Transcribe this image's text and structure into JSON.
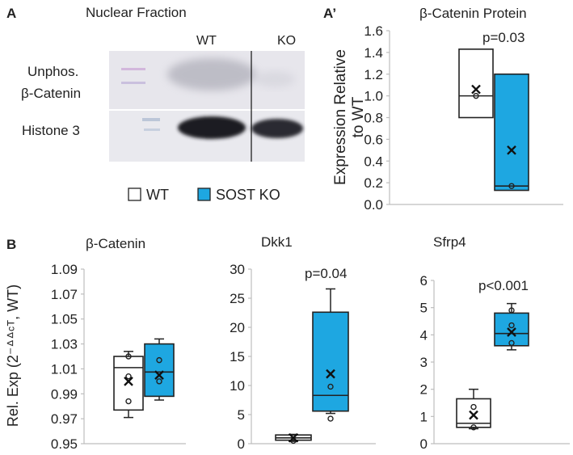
{
  "colors": {
    "wt": "#ffffff",
    "ko": "#1ea7e1",
    "axis": "#bdbdbd",
    "marker": "#111111"
  },
  "panel_labels": {
    "a": "A",
    "a_prime": "A’",
    "b": "B"
  },
  "blot": {
    "title": "Nuclear Fraction",
    "lane_wt": "WT",
    "lane_ko": "KO",
    "row1_line1": "Unphos.",
    "row1_line2": "β-Catenin",
    "row2": "Histone 3"
  },
  "legend": {
    "wt": "WT",
    "ko": "SOST KO"
  },
  "chart_data": [
    {
      "id": "protein",
      "type": "box",
      "title": "β-Catenin Protein",
      "ylabel_lines": [
        "Expression Relative",
        "to WT"
      ],
      "ylim": [
        0,
        1.6
      ],
      "yticks": [
        "0.0",
        "0.2",
        "0.4",
        "0.6",
        "0.8",
        "1.0",
        "1.2",
        "1.4",
        "1.6"
      ],
      "pvalue": "p=0.03",
      "groups": [
        {
          "name": "WT",
          "color": "#ffffff",
          "min": 0.8,
          "q1": 0.8,
          "median": 1.0,
          "q3": 1.43,
          "max": 1.43,
          "mean": 1.06,
          "points": [
            1.0
          ]
        },
        {
          "name": "SOST KO",
          "color": "#1ea7e1",
          "min": 0.13,
          "q1": 0.13,
          "median": 0.17,
          "q3": 1.2,
          "max": 1.2,
          "mean": 0.5,
          "points": [
            0.17
          ]
        }
      ]
    },
    {
      "id": "bcat",
      "type": "box",
      "title": "β-Catenin",
      "ylabel": "Rel. Exp (2⁻ᐞᐞᶜᵀ, WT)",
      "ylim": [
        0.95,
        1.09
      ],
      "yticks": [
        "0.95",
        "0.97",
        "0.99",
        "1.01",
        "1.03",
        "1.05",
        "1.07",
        "1.09"
      ],
      "pvalue": "",
      "groups": [
        {
          "name": "WT",
          "color": "#ffffff",
          "min": 0.971,
          "q1": 0.977,
          "median": 1.011,
          "q3": 1.02,
          "max": 1.024,
          "mean": 1.0,
          "points": [
            1.02,
            1.004,
            0.984
          ]
        },
        {
          "name": "SOST KO",
          "color": "#1ea7e1",
          "min": 0.985,
          "q1": 0.988,
          "median": 1.0075,
          "q3": 1.03,
          "max": 1.034,
          "mean": 1.005,
          "points": [
            1.017,
            1.0
          ]
        }
      ]
    },
    {
      "id": "dkk1",
      "type": "box",
      "title": "Dkk1",
      "ylim": [
        0,
        30
      ],
      "yticks": [
        "0",
        "5",
        "10",
        "15",
        "20",
        "25",
        "30"
      ],
      "pvalue": "p=0.04",
      "groups": [
        {
          "name": "WT",
          "color": "#ffffff",
          "min": 0.4,
          "q1": 0.6,
          "median": 1.0,
          "q3": 1.5,
          "max": 1.6,
          "mean": 1.0,
          "points": [
            0.5
          ]
        },
        {
          "name": "SOST KO",
          "color": "#1ea7e1",
          "min": 5.2,
          "q1": 5.6,
          "median": 8.3,
          "q3": 22.6,
          "max": 26.6,
          "mean": 12.0,
          "points": [
            9.8,
            4.3
          ]
        }
      ]
    },
    {
      "id": "sfrp4",
      "type": "box",
      "title": "Sfrp4",
      "ylim": [
        0,
        6
      ],
      "yticks": [
        "0",
        "1",
        "2",
        "3",
        "4",
        "5",
        "6"
      ],
      "pvalue": "p<0.001",
      "groups": [
        {
          "name": "WT",
          "color": "#ffffff",
          "min": 0.55,
          "q1": 0.6,
          "median": 0.75,
          "q3": 1.65,
          "max": 2.0,
          "mean": 1.05,
          "points": [
            1.35,
            0.6
          ]
        },
        {
          "name": "SOST KO",
          "color": "#1ea7e1",
          "min": 3.45,
          "q1": 3.6,
          "median": 4.05,
          "q3": 4.8,
          "max": 5.15,
          "mean": 4.1,
          "points": [
            4.9,
            4.35,
            3.7
          ]
        }
      ]
    }
  ]
}
